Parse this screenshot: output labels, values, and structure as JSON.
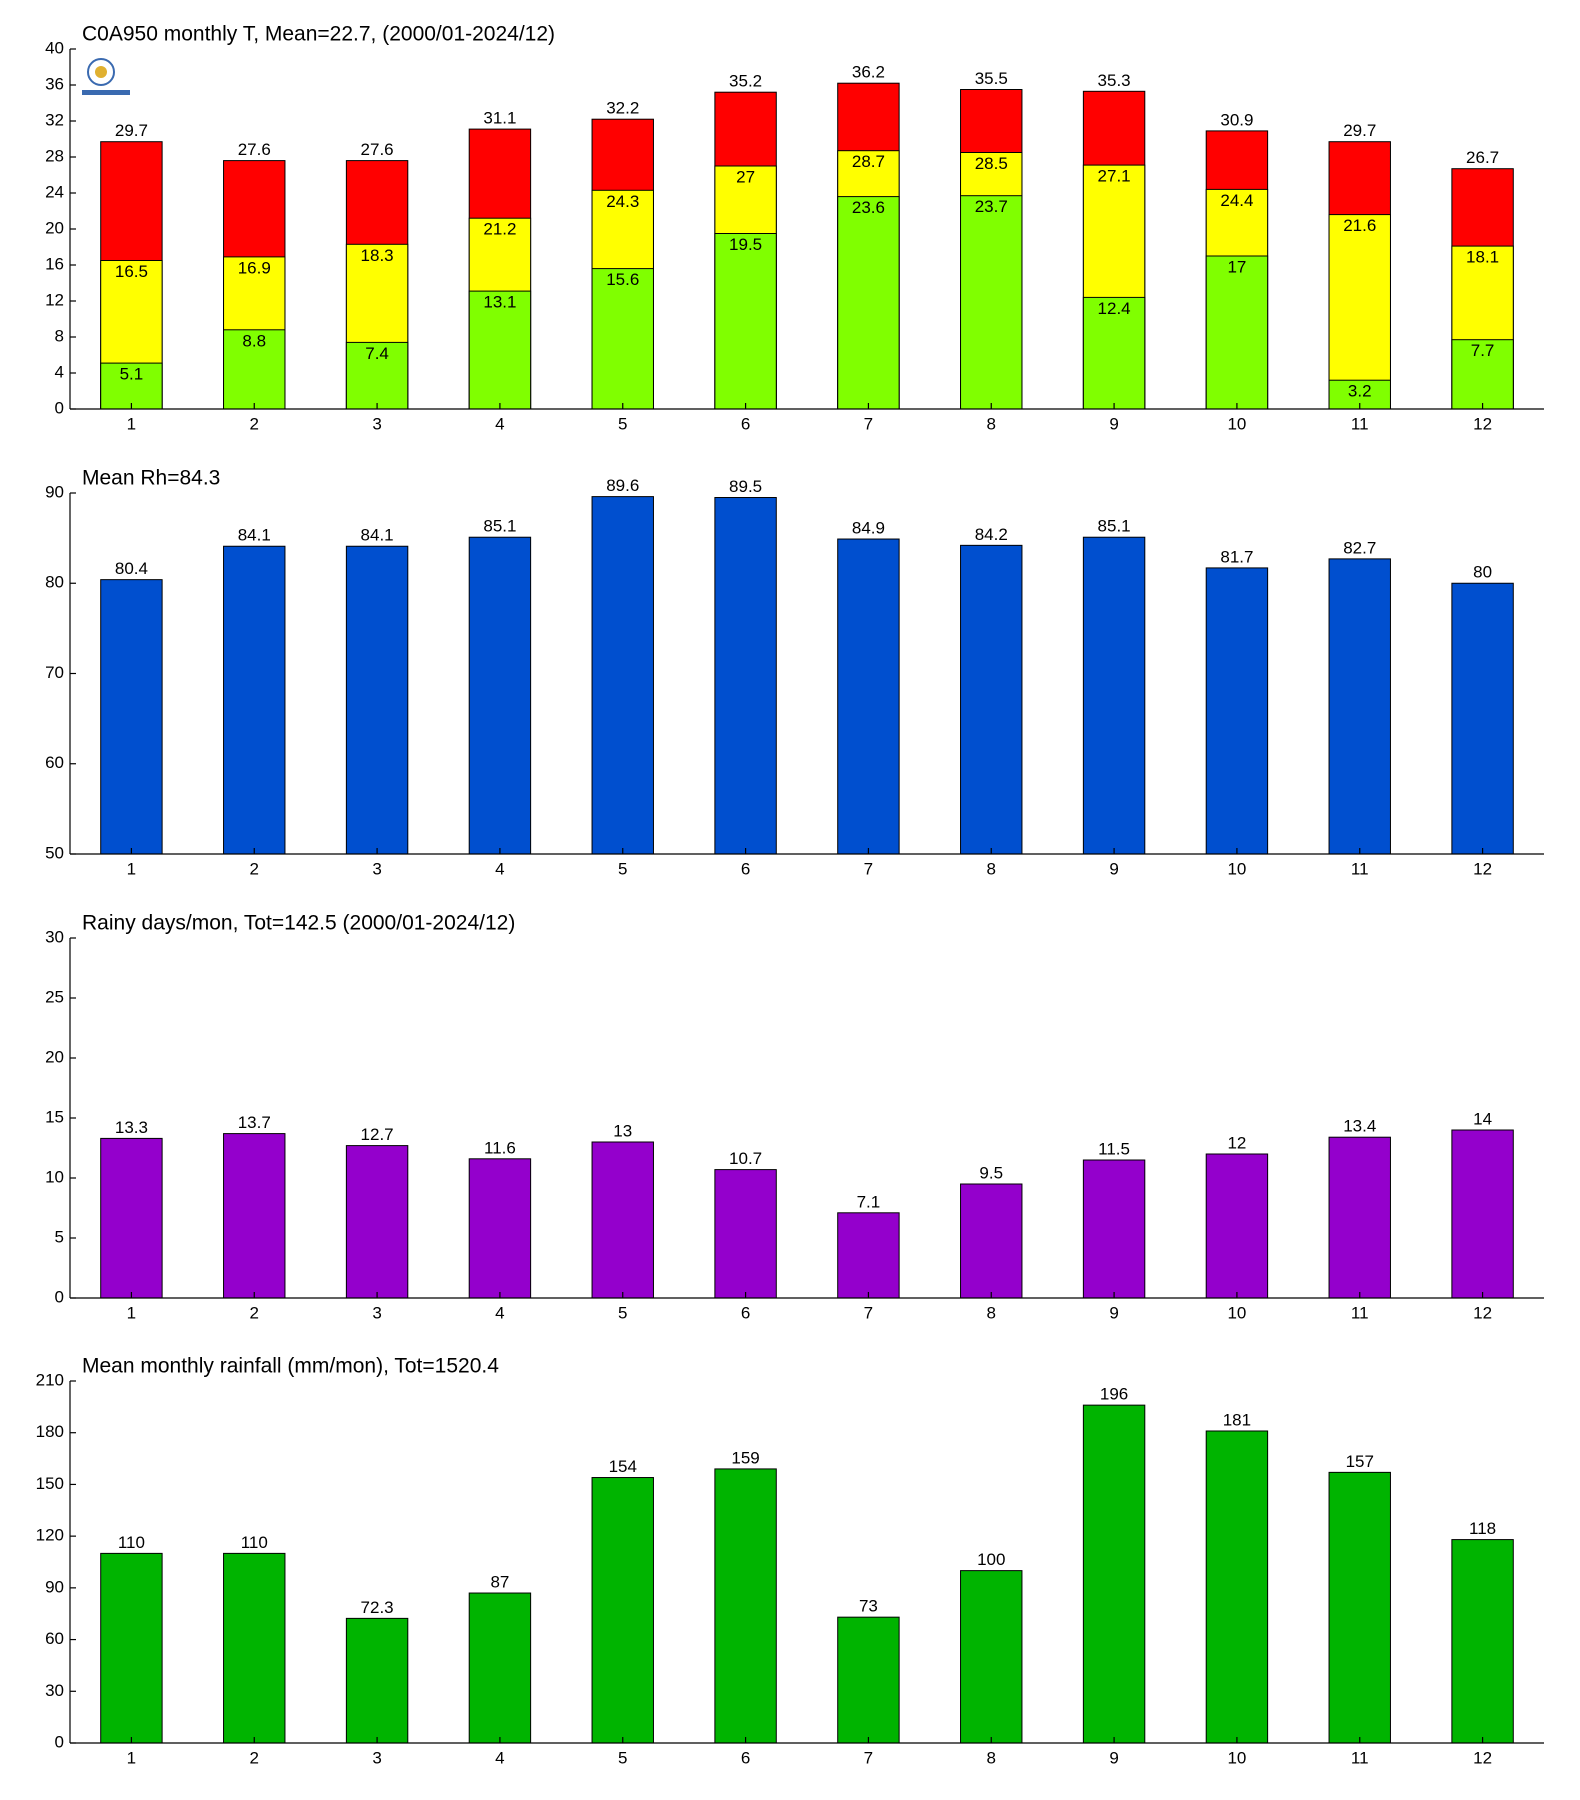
{
  "chart_data": [
    {
      "type": "bar",
      "title": "C0A950 monthly T, Mean=22.7, (2000/01-2024/12)",
      "categories": [
        "1",
        "2",
        "3",
        "4",
        "5",
        "6",
        "7",
        "8",
        "9",
        "10",
        "11",
        "12"
      ],
      "series": [
        {
          "color": "#80ff00",
          "values": [
            5.1,
            8.8,
            7.4,
            13.1,
            15.6,
            19.5,
            23.6,
            23.7,
            12.4,
            17,
            3.2,
            7.7
          ]
        },
        {
          "color": "#ffff00",
          "values": [
            16.5,
            16.9,
            18.3,
            21.2,
            24.3,
            27,
            28.7,
            28.5,
            27.1,
            24.4,
            21.6,
            18.1
          ]
        },
        {
          "color": "#ff0000",
          "values": [
            29.7,
            27.6,
            27.6,
            31.1,
            32.2,
            35.2,
            36.2,
            35.5,
            35.3,
            30.9,
            29.7,
            26.7
          ]
        }
      ],
      "ylim": [
        0,
        40
      ],
      "yticks": [
        0,
        4,
        8,
        12,
        16,
        20,
        24,
        28,
        32,
        36,
        40
      ]
    },
    {
      "type": "bar",
      "title": "Mean Rh=84.3",
      "categories": [
        "1",
        "2",
        "3",
        "4",
        "5",
        "6",
        "7",
        "8",
        "9",
        "10",
        "11",
        "12"
      ],
      "series": [
        {
          "color": "#004fcf",
          "values": [
            80.4,
            84.1,
            84.1,
            85.1,
            89.6,
            89.5,
            84.9,
            84.2,
            85.1,
            81.7,
            82.7,
            80
          ]
        }
      ],
      "ylim": [
        50,
        90
      ],
      "yticks": [
        50,
        60,
        70,
        80,
        90
      ]
    },
    {
      "type": "bar",
      "title": "Rainy days/mon, Tot=142.5 (2000/01-2024/12)",
      "categories": [
        "1",
        "2",
        "3",
        "4",
        "5",
        "6",
        "7",
        "8",
        "9",
        "10",
        "11",
        "12"
      ],
      "series": [
        {
          "color": "#9400cc",
          "values": [
            13.3,
            13.7,
            12.7,
            11.6,
            13,
            10.7,
            7.1,
            9.5,
            11.5,
            12,
            13.4,
            14
          ]
        }
      ],
      "ylim": [
        0,
        30
      ],
      "yticks": [
        0,
        5,
        10,
        15,
        20,
        25,
        30
      ]
    },
    {
      "type": "bar",
      "title": "Mean monthly rainfall (mm/mon), Tot=1520.4",
      "categories": [
        "1",
        "2",
        "3",
        "4",
        "5",
        "6",
        "7",
        "8",
        "9",
        "10",
        "11",
        "12"
      ],
      "series": [
        {
          "color": "#00b400",
          "values": [
            110,
            110,
            72.3,
            87,
            154,
            159,
            73,
            100,
            196,
            181,
            157,
            118
          ]
        }
      ],
      "ylim": [
        0,
        210
      ],
      "yticks": [
        0,
        30,
        60,
        90,
        120,
        150,
        180,
        210
      ]
    }
  ]
}
